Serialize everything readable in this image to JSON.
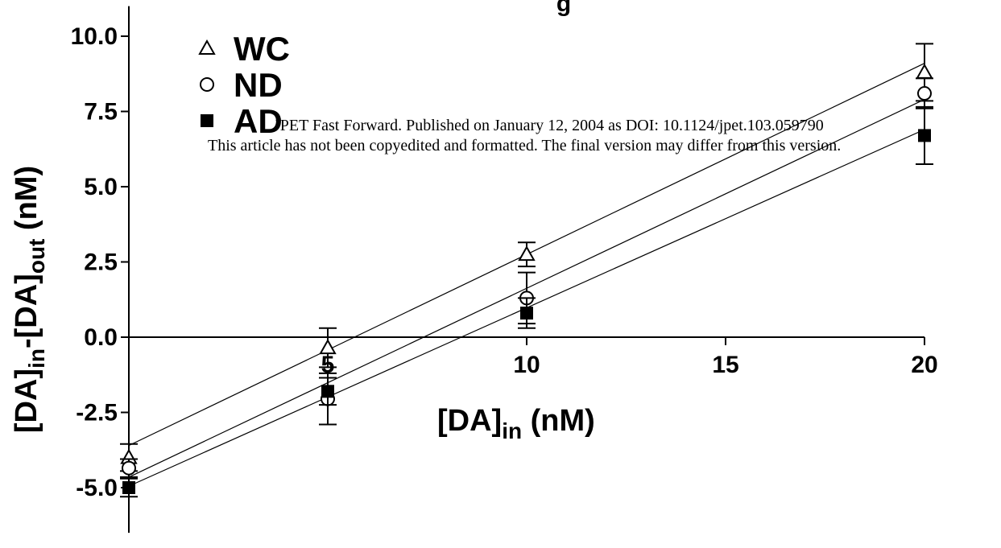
{
  "watermark": {
    "line1": "JPET Fast Forward. Published on January 12, 2004 as DOI: 10.1124/jpet.103.059790",
    "line2": "This article has not been copyedited and formatted. The final version may differ from this version."
  },
  "chart_data": {
    "type": "scatter",
    "title_fragment": "g",
    "xlabel": {
      "main": "[DA]",
      "sub": "in",
      "unit": " (nM)"
    },
    "ylabel": {
      "part1": "[DA]",
      "sub1": "in",
      "part2": "-[DA]",
      "sub2": "out",
      "unit": " (nM)"
    },
    "xlim": [
      0,
      20
    ],
    "ylim": [
      -6.5,
      11
    ],
    "x_ticks": [
      5,
      10,
      15,
      20
    ],
    "x_tick_labels": [
      "5",
      "10",
      "15",
      "20"
    ],
    "y_ticks": [
      10.0,
      7.5,
      5.0,
      2.5,
      0.0,
      -2.5,
      -5.0
    ],
    "y_tick_labels": [
      "10.0",
      "7.5",
      "5.0",
      "2.5",
      "0.0",
      "-2.5",
      "-5.0"
    ],
    "legend_position": "top-left",
    "series": [
      {
        "name": "WC",
        "marker": "open-triangle",
        "x": [
          0,
          5,
          10,
          20
        ],
        "y": [
          -4.0,
          -0.35,
          2.75,
          8.8
        ],
        "err": [
          0.45,
          0.65,
          0.4,
          0.95
        ],
        "fit": {
          "x": [
            0,
            20
          ],
          "y": [
            -3.6,
            9.1
          ]
        }
      },
      {
        "name": "ND",
        "marker": "open-circle",
        "x": [
          0,
          5,
          10,
          20
        ],
        "y": [
          -4.35,
          -2.05,
          1.3,
          8.1
        ],
        "err": [
          0.3,
          0.85,
          0.85,
          0.5
        ],
        "fit": {
          "x": [
            0,
            20
          ],
          "y": [
            -4.65,
            7.9
          ]
        }
      },
      {
        "name": "AD",
        "marker": "filled-square",
        "x": [
          0,
          5,
          10,
          20
        ],
        "y": [
          -5.0,
          -1.8,
          0.8,
          6.7
        ],
        "err": [
          0.3,
          0.45,
          0.5,
          0.95
        ],
        "fit": {
          "x": [
            0,
            20
          ],
          "y": [
            -4.95,
            6.9
          ]
        }
      }
    ]
  }
}
